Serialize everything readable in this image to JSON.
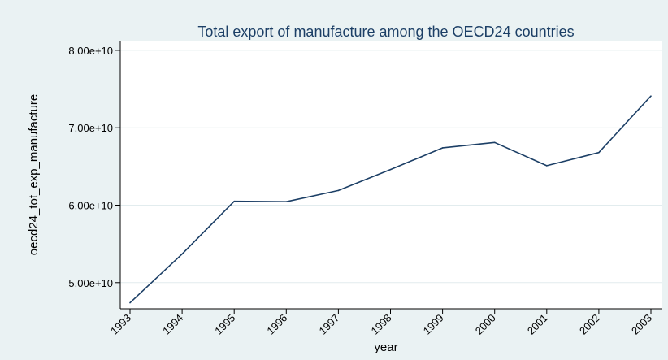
{
  "chart_data": {
    "type": "line",
    "title": "Total export of manufacture among the OECD24 countries",
    "xlabel": "year",
    "ylabel": "oecd24_tot_exp_manufacture",
    "x": [
      1993,
      1994,
      1995,
      1996,
      1997,
      1998,
      1999,
      2000,
      2001,
      2002,
      2003
    ],
    "series": [
      {
        "values": [
          47400000000,
          53700000000,
          60500000000,
          60450000000,
          61900000000,
          64600000000,
          67400000000,
          68100000000,
          65100000000,
          66800000000,
          74100000000
        ]
      }
    ],
    "x_ticks": [
      "1993",
      "1994",
      "1995",
      "1996",
      "1997",
      "1998",
      "1999",
      "2000",
      "2001",
      "2002",
      "2003"
    ],
    "y_ticks": [
      {
        "value": 50000000000,
        "label": "5.00e+10"
      },
      {
        "value": 60000000000,
        "label": "6.00e+10"
      },
      {
        "value": 70000000000,
        "label": "7.00e+10"
      },
      {
        "value": 80000000000,
        "label": "8.00e+10"
      }
    ],
    "ylim": [
      46620000000,
      81250000000
    ],
    "xlim": [
      1993,
      2003
    ],
    "grid": true,
    "colors": {
      "background": "#eaf2f3",
      "plot_background": "#ffffff",
      "line": "#1c3f66",
      "grid": "#e2ecee",
      "title": "#1c3f66"
    }
  }
}
